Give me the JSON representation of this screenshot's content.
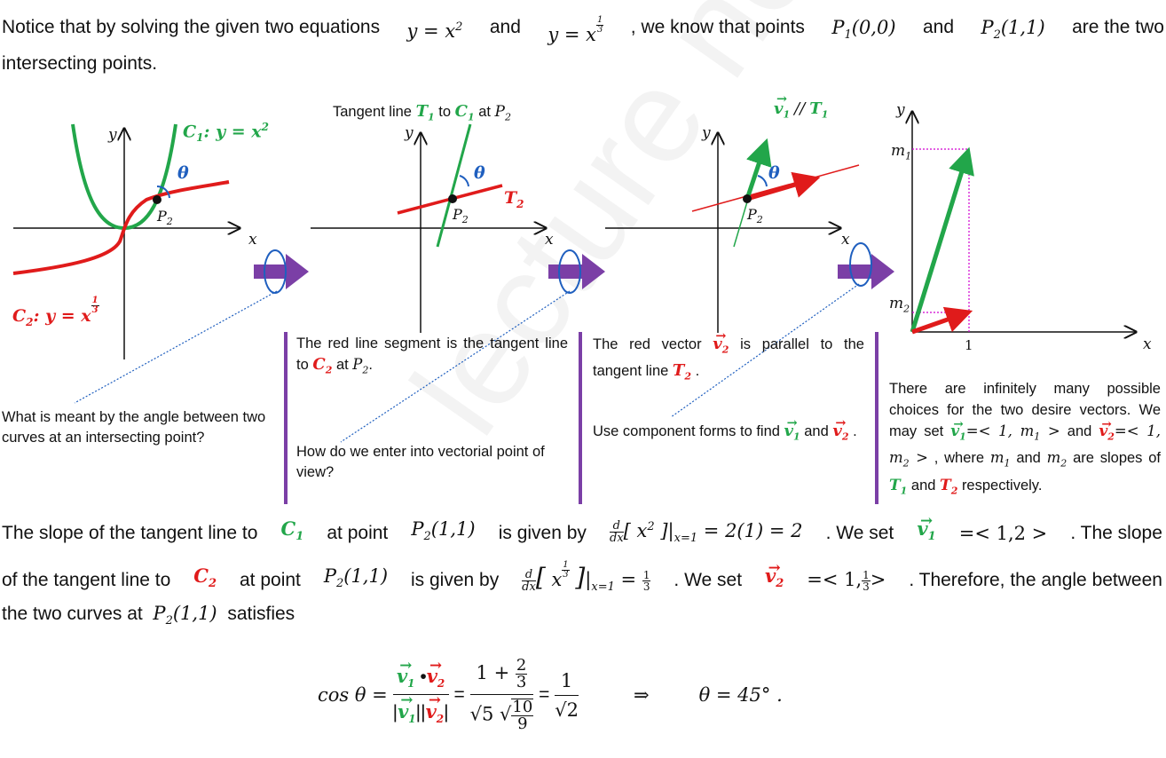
{
  "intro": {
    "lead": "Notice that by solving the given two equations",
    "eq1": "y = x",
    "eq1_exp": "2",
    "and": "and",
    "eq2": "y = x",
    "eq2_exp_num": "1",
    "eq2_exp_den": "3",
    "mid": ", we know that points",
    "p1": "P",
    "p1_sub": "1",
    "p1_coord": "(0,0)",
    "and2": "and",
    "p2": "P",
    "p2_sub": "2",
    "p2_coord": "(1,1)",
    "tail": "are the two",
    "line2": "intersecting points."
  },
  "panel1": {
    "c1_label": "C",
    "c1_sub": "1",
    "c1_eq": ": y = x",
    "c1_exp": "2",
    "c2_label": "C",
    "c2_sub": "2",
    "c2_eq": ": y = x",
    "c2_exp_num": "1",
    "c2_exp_den": "3",
    "theta": "θ",
    "p2": "P",
    "p2_sub": "2",
    "x": "x",
    "y": "y",
    "question": "What is meant by the angle between two curves at an intersecting point?"
  },
  "panel2": {
    "title_a": "Tangent line",
    "t1": "T",
    "t1_sub": "1",
    "title_b": "to",
    "c1": "C",
    "c1_sub": "1",
    "title_c": "at",
    "p2": "P",
    "p2_sub": "2",
    "theta": "θ",
    "t2": "T",
    "t2_sub": "2",
    "x": "x",
    "y": "y",
    "cap_a": "The red line segment is the tangent line to",
    "cap_c2": "C",
    "cap_c2_sub": "2",
    "cap_b": "at",
    "cap_p": "P",
    "cap_p_sub": "2",
    "cap_end": ".",
    "question": "How do we enter into vectorial point of view?"
  },
  "panel3": {
    "title_v": "v",
    "title_v_sub": "1",
    "title_par": "//",
    "title_t": "T",
    "title_t_sub": "1",
    "theta": "θ",
    "p2": "P",
    "p2_sub": "2",
    "x": "x",
    "y": "y",
    "cap_a": "The red vector",
    "cap_v": "v",
    "cap_v_sub": "2",
    "cap_b": "is parallel to the tangent line",
    "cap_t": "T",
    "cap_t_sub": "2",
    "cap_end": ".",
    "q_a": "Use component forms to find",
    "q_v1": "v",
    "q_v1_sub": "1",
    "q_and": "and",
    "q_v2": "v",
    "q_v2_sub": "2",
    "q_end": "."
  },
  "panel4": {
    "y": "y",
    "x": "x",
    "m1": "m",
    "m1_sub": "1",
    "m2": "m",
    "m2_sub": "2",
    "one": "1",
    "text_a": "There are infinitely many possible choices for the two desire vectors. We may set",
    "v1": "v",
    "v1_sub": "1",
    "v1_val_a": "=< 1, ",
    "v1_m": "m",
    "v1_m_sub": "1",
    "v1_val_b": " >",
    "and": "and",
    "v2": "v",
    "v2_sub": "2",
    "v2_val_a": "=< 1, ",
    "v2_m": "m",
    "v2_m_sub": "2",
    "v2_val_b": " >",
    "where": ", where",
    "wm1": "m",
    "wm1_sub": "1",
    "and2": "and",
    "wm2": "m",
    "wm2_sub": "2",
    "are": "are slopes of",
    "t1": "T",
    "t1_sub": "1",
    "and3": "and",
    "t2": "T",
    "t2_sub": "2",
    "resp": "respectively."
  },
  "bottom": {
    "s1_a": "The slope of the tangent line to",
    "s1_c": "C",
    "s1_c_sub": "1",
    "s1_b": "at point",
    "s1_p": "P",
    "s1_p_sub": "2",
    "s1_pc": "(1,1)",
    "s1_c2": "is given by",
    "d": "d",
    "dx": "dx",
    "s1_expr": "[ x",
    "s1_exp": "2",
    "s1_close": " ]|",
    "s1_eval_sub": "x=1",
    "s1_result": " = 2(1) = 2",
    "s1_set": ". We set",
    "s1_v": "v",
    "s1_v_sub": "1",
    "s1_val": "=< 1,2 >",
    "s1_tail": ". The slope",
    "s2_a": "of the tangent line to",
    "s2_c": "C",
    "s2_c_sub": "2",
    "s2_b": "at point",
    "s2_p": "P",
    "s2_p_sub": "2",
    "s2_pc": "(1,1)",
    "s2_c2": "is given by",
    "s2_exp_num": "1",
    "s2_exp_den": "3",
    "s2_eval_sub": "x=1",
    "s2_eq": " = ",
    "s2_r_num": "1",
    "s2_r_den": "3",
    "s2_set": ". We set",
    "s2_v": "v",
    "s2_v_sub": "2",
    "s2_val_a": "=< 1,",
    "s2_val_num": "1",
    "s2_val_den": "3",
    "s2_val_b": ">",
    "s2_tail": ". Therefore, the angle between",
    "s3_a": "the two curves at",
    "s3_p": "P",
    "s3_p_sub": "2",
    "s3_pc": "(1,1)",
    "s3_b": "satisfies",
    "cos": "cos θ =",
    "f_v1": "v",
    "f_v1_sub": "1",
    "f_dot": "•",
    "f_v2": "v",
    "f_v2_sub": "2",
    "eq": "=",
    "f2_num_a": "1 +",
    "f2_num_n": "2",
    "f2_num_d": "3",
    "f2_den_a": "√5",
    "f2_den_n": "10",
    "f2_den_d": "9",
    "f3_num": "1",
    "f3_den": "√2",
    "implies": "⇒",
    "result": "θ = 45° ."
  },
  "watermark": "lecture notes",
  "colors": {
    "green": "#22a64a",
    "red": "#e01b1b",
    "purple": "#7b3fa6",
    "blue": "#1f5fbf",
    "magenta": "#d000d0"
  }
}
